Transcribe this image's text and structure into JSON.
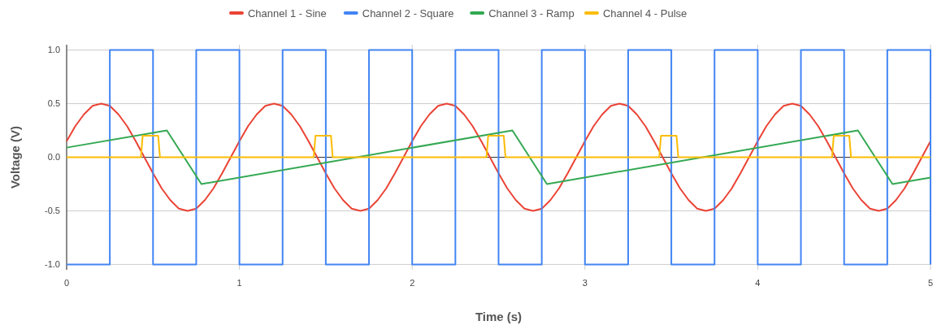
{
  "chart_data": {
    "type": "line",
    "xlabel": "Time (s)",
    "ylabel": "Voltage (V)",
    "xlim": [
      0,
      5
    ],
    "ylim": [
      -1.05,
      1.05
    ],
    "xticks": [
      0,
      1,
      2,
      3,
      4,
      5
    ],
    "yticks": [
      {
        "value": -1,
        "label": "-1.0"
      },
      {
        "value": -0.5,
        "label": "-0.5"
      },
      {
        "value": 0,
        "label": "0.0"
      },
      {
        "value": 0.5,
        "label": "0.5"
      },
      {
        "value": 1,
        "label": "1.0"
      }
    ],
    "grid": true,
    "legend": "top",
    "marker": "none",
    "line_style": "solid",
    "series": [
      {
        "name": "Channel 1 - Sine",
        "color": "#ea4335",
        "x": [
          0,
          0.05,
          0.1,
          0.15,
          0.2,
          0.25,
          0.3,
          0.35,
          0.4,
          0.45,
          0.5,
          0.55,
          0.6,
          0.65,
          0.7,
          0.75,
          0.8,
          0.85,
          0.9,
          0.95,
          1,
          1.05,
          1.1,
          1.15,
          1.2,
          1.25,
          1.3,
          1.35,
          1.4,
          1.45,
          1.5,
          1.55,
          1.6,
          1.65,
          1.7,
          1.75,
          1.8,
          1.85,
          1.9,
          1.95,
          2,
          2.05,
          2.1,
          2.15,
          2.2,
          2.25,
          2.3,
          2.35,
          2.4,
          2.45,
          2.5,
          2.55,
          2.6,
          2.65,
          2.7,
          2.75,
          2.8,
          2.85,
          2.9,
          2.95,
          3,
          3.05,
          3.1,
          3.15,
          3.2,
          3.25,
          3.3,
          3.35,
          3.4,
          3.45,
          3.5,
          3.55,
          3.6,
          3.65,
          3.7,
          3.75,
          3.8,
          3.85,
          3.9,
          3.95,
          4,
          4.05,
          4.1,
          4.15,
          4.2,
          4.25,
          4.3,
          4.35,
          4.4,
          4.45,
          4.5,
          4.55,
          4.6,
          4.65,
          4.7,
          4.75,
          4.8,
          4.85,
          4.9,
          4.95,
          5
        ],
        "values": [
          0.15,
          0.29,
          0.4,
          0.48,
          0.5,
          0.48,
          0.4,
          0.29,
          0.15,
          0,
          -0.15,
          -0.29,
          -0.4,
          -0.48,
          -0.5,
          -0.48,
          -0.4,
          -0.29,
          -0.15,
          0,
          0.15,
          0.29,
          0.4,
          0.48,
          0.5,
          0.48,
          0.4,
          0.29,
          0.15,
          0,
          -0.15,
          -0.29,
          -0.4,
          -0.48,
          -0.5,
          -0.48,
          -0.4,
          -0.29,
          -0.15,
          0,
          0.15,
          0.29,
          0.4,
          0.48,
          0.5,
          0.48,
          0.4,
          0.29,
          0.15,
          0,
          -0.15,
          -0.29,
          -0.4,
          -0.48,
          -0.5,
          -0.48,
          -0.4,
          -0.29,
          -0.15,
          0,
          0.15,
          0.29,
          0.4,
          0.48,
          0.5,
          0.48,
          0.4,
          0.29,
          0.15,
          0,
          -0.15,
          -0.29,
          -0.4,
          -0.48,
          -0.5,
          -0.48,
          -0.4,
          -0.29,
          -0.15,
          0,
          0.15,
          0.29,
          0.4,
          0.48,
          0.5,
          0.48,
          0.4,
          0.29,
          0.15,
          0,
          -0.15,
          -0.29,
          -0.4,
          -0.48,
          -0.5,
          -0.48,
          -0.4,
          -0.29,
          -0.15,
          0,
          0.15
        ]
      },
      {
        "name": "Channel 2 - Square",
        "color": "#4285f4",
        "type": "step",
        "x": [
          0,
          0.25,
          0.5,
          0.75,
          1,
          1.25,
          1.5,
          1.75,
          2,
          2.25,
          2.5,
          2.75,
          3,
          3.25,
          3.5,
          3.75,
          4,
          4.25,
          4.5,
          4.75,
          5
        ],
        "values": [
          -1,
          1,
          -1,
          1,
          -1,
          1,
          -1,
          1,
          -1,
          1,
          -1,
          1,
          -1,
          1,
          -1,
          1,
          -1,
          1,
          -1,
          1,
          -1
        ]
      },
      {
        "name": "Channel 3 - Ramp",
        "color": "#34a853",
        "x": [
          0,
          0.58,
          0.78,
          2.58,
          2.78,
          4.58,
          4.78,
          5
        ],
        "values": [
          0.09,
          0.25,
          -0.25,
          0.25,
          -0.25,
          0.25,
          -0.25,
          -0.19
        ]
      },
      {
        "name": "Channel 4 - Pulse",
        "color": "#fbbc04",
        "x": [
          0,
          0.43,
          0.44,
          0.53,
          0.54,
          1.43,
          1.44,
          1.53,
          1.54,
          2.43,
          2.44,
          2.53,
          2.54,
          3.43,
          3.44,
          3.53,
          3.54,
          4.43,
          4.44,
          4.53,
          4.54,
          5
        ],
        "values": [
          0,
          0,
          0.2,
          0.2,
          0,
          0,
          0.2,
          0.2,
          0,
          0,
          0.2,
          0.2,
          0,
          0,
          0.2,
          0.2,
          0,
          0,
          0.2,
          0.2,
          0,
          0
        ]
      }
    ]
  }
}
